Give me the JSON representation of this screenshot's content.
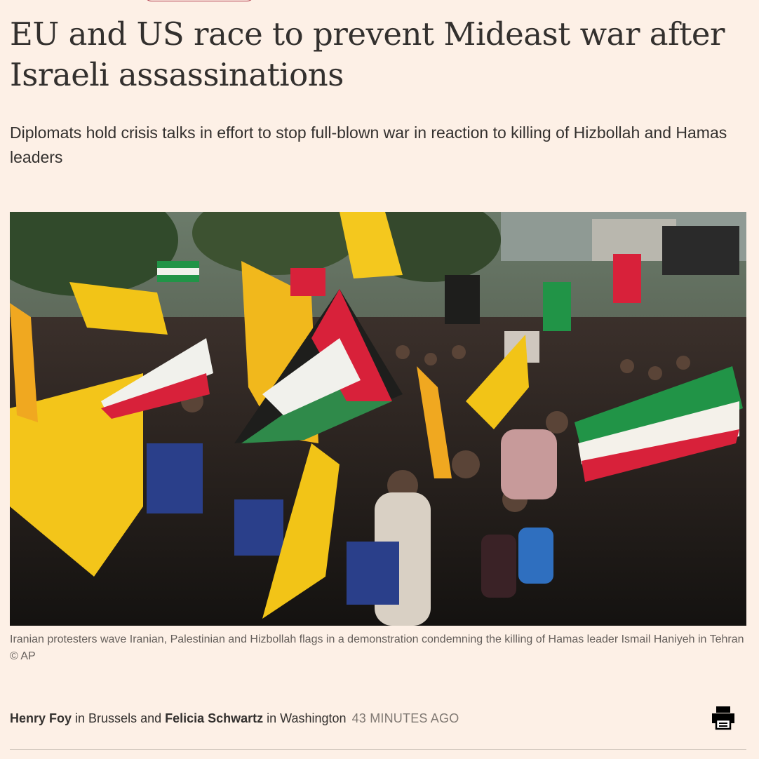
{
  "article": {
    "headline": "EU and US race to prevent Mideast war after Israeli assassinations",
    "standfirst": "Diplomats hold crisis talks in effort to stop full-blown war in reaction to killing of Hizbollah and Hamas leaders",
    "image": {
      "caption": "Iranian protesters wave Iranian, Palestinian and Hizbollah flags in a demonstration condemning the killing of Hamas leader Ismail Haniyeh in Tehran © AP"
    },
    "byline": {
      "author1": "Henry Foy",
      "sep1": " in Brussels and ",
      "author2": "Felicia Schwartz",
      "sep2": " in Washington",
      "timestamp": "43 MINUTES AGO"
    }
  },
  "colors": {
    "background": "#fdf0e6",
    "text": "#33302e",
    "muted": "#807973",
    "accent": "#b2394a"
  },
  "icons": {
    "print": "print-icon"
  }
}
